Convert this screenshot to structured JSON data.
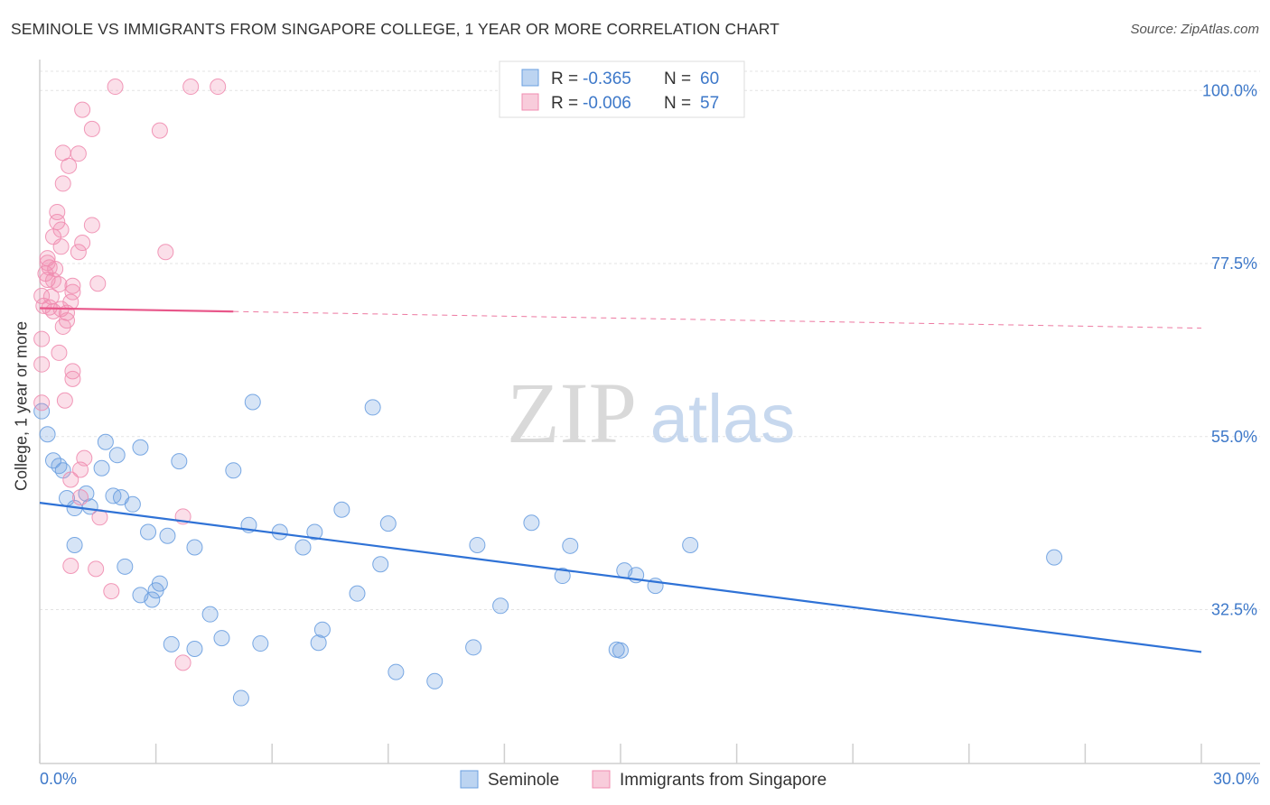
{
  "header": {
    "title": "SEMINOLE VS IMMIGRANTS FROM SINGAPORE COLLEGE, 1 YEAR OR MORE CORRELATION CHART",
    "source": "Source: ZipAtlas.com"
  },
  "watermark": {
    "zip": "ZIP",
    "atlas": "atlas"
  },
  "chart_data": {
    "type": "scatter",
    "title": "SEMINOLE VS IMMIGRANTS FROM SINGAPORE COLLEGE, 1 YEAR OR MORE CORRELATION CHART",
    "ylabel": "College, 1 year or more",
    "xlabel": "",
    "xlim": [
      0,
      30
    ],
    "ylim": [
      12.5,
      102.5
    ],
    "x_tick_labels": [
      "0.0%",
      "30.0%"
    ],
    "y_ticks": [
      32.5,
      55.0,
      77.5,
      100.0
    ],
    "y_tick_labels": [
      "32.5%",
      "55.0%",
      "77.5%",
      "100.0%"
    ],
    "grid": true,
    "legend_position": "top-center",
    "stats": [
      {
        "r_label": "R =",
        "r": "-0.365",
        "n_label": "N =",
        "n": "60"
      },
      {
        "r_label": "R =",
        "r": "-0.006",
        "n_label": "N =",
        "n": "57"
      }
    ],
    "series": [
      {
        "name": "Seminole",
        "color": "#6a9fe0",
        "trend": {
          "x": [
            0,
            30
          ],
          "y": [
            46.4,
            27.0
          ],
          "dashed_from": null
        },
        "points": [
          [
            0.05,
            58.3
          ],
          [
            0.2,
            55.3
          ],
          [
            0.35,
            51.9
          ],
          [
            0.5,
            51.2
          ],
          [
            0.6,
            50.6
          ],
          [
            0.7,
            47.0
          ],
          [
            0.9,
            45.7
          ],
          [
            1.2,
            47.6
          ],
          [
            1.3,
            45.9
          ],
          [
            1.6,
            50.9
          ],
          [
            1.7,
            54.3
          ],
          [
            1.9,
            47.3
          ],
          [
            2.0,
            52.6
          ],
          [
            2.1,
            47.1
          ],
          [
            2.4,
            46.2
          ],
          [
            2.6,
            53.6
          ],
          [
            2.8,
            42.6
          ],
          [
            0.9,
            40.9
          ],
          [
            2.2,
            38.1
          ],
          [
            2.6,
            34.4
          ],
          [
            2.9,
            33.8
          ],
          [
            3.0,
            35.0
          ],
          [
            3.1,
            35.9
          ],
          [
            3.3,
            42.1
          ],
          [
            3.6,
            51.8
          ],
          [
            3.4,
            28.0
          ],
          [
            4.0,
            40.6
          ],
          [
            4.0,
            27.4
          ],
          [
            4.4,
            31.9
          ],
          [
            4.7,
            28.8
          ],
          [
            5.0,
            50.6
          ],
          [
            5.2,
            21.0
          ],
          [
            5.4,
            43.5
          ],
          [
            5.5,
            59.5
          ],
          [
            5.7,
            28.1
          ],
          [
            6.2,
            42.6
          ],
          [
            6.8,
            40.6
          ],
          [
            7.1,
            42.6
          ],
          [
            7.2,
            28.2
          ],
          [
            7.3,
            29.9
          ],
          [
            7.8,
            45.5
          ],
          [
            8.2,
            34.6
          ],
          [
            8.6,
            58.8
          ],
          [
            8.8,
            38.4
          ],
          [
            9.0,
            43.7
          ],
          [
            9.2,
            24.4
          ],
          [
            10.2,
            23.2
          ],
          [
            11.2,
            27.6
          ],
          [
            11.3,
            40.9
          ],
          [
            11.9,
            33.0
          ],
          [
            12.7,
            43.8
          ],
          [
            13.5,
            36.9
          ],
          [
            13.7,
            40.8
          ],
          [
            14.9,
            27.3
          ],
          [
            15.1,
            37.6
          ],
          [
            15.4,
            37.0
          ],
          [
            15.9,
            35.6
          ],
          [
            16.8,
            40.9
          ],
          [
            26.2,
            39.3
          ],
          [
            15.0,
            27.2
          ]
        ]
      },
      {
        "name": "Immigrants from Singapore",
        "color": "#f08db0",
        "trend": {
          "x": [
            0,
            30
          ],
          "y": [
            71.7,
            69.1
          ],
          "dashed_from": 5.0
        },
        "points": [
          [
            1.95,
            100.5
          ],
          [
            3.9,
            100.5
          ],
          [
            4.6,
            100.5
          ],
          [
            1.1,
            97.5
          ],
          [
            1.35,
            95.0
          ],
          [
            3.1,
            94.8
          ],
          [
            0.6,
            91.9
          ],
          [
            1.0,
            91.8
          ],
          [
            0.75,
            90.2
          ],
          [
            0.6,
            87.9
          ],
          [
            0.45,
            84.2
          ],
          [
            0.45,
            82.9
          ],
          [
            1.35,
            82.5
          ],
          [
            0.55,
            81.9
          ],
          [
            0.35,
            81.0
          ],
          [
            1.1,
            80.2
          ],
          [
            0.55,
            79.7
          ],
          [
            1.0,
            79.0
          ],
          [
            3.25,
            79.0
          ],
          [
            0.2,
            78.2
          ],
          [
            0.2,
            77.6
          ],
          [
            0.25,
            77.0
          ],
          [
            0.4,
            76.8
          ],
          [
            0.15,
            76.2
          ],
          [
            0.2,
            75.4
          ],
          [
            0.35,
            75.3
          ],
          [
            0.5,
            74.8
          ],
          [
            1.5,
            74.9
          ],
          [
            0.85,
            74.6
          ],
          [
            0.85,
            73.8
          ],
          [
            0.05,
            73.3
          ],
          [
            0.3,
            73.2
          ],
          [
            0.8,
            72.5
          ],
          [
            0.1,
            72.0
          ],
          [
            0.25,
            71.8
          ],
          [
            0.35,
            71.3
          ],
          [
            0.55,
            71.6
          ],
          [
            0.7,
            71.1
          ],
          [
            0.7,
            70.1
          ],
          [
            0.6,
            69.3
          ],
          [
            0.05,
            67.7
          ],
          [
            0.5,
            65.9
          ],
          [
            0.05,
            64.4
          ],
          [
            0.85,
            63.5
          ],
          [
            0.85,
            62.5
          ],
          [
            0.65,
            59.7
          ],
          [
            0.05,
            59.4
          ],
          [
            1.15,
            52.2
          ],
          [
            1.05,
            50.7
          ],
          [
            0.8,
            49.4
          ],
          [
            1.05,
            47.1
          ],
          [
            3.7,
            44.6
          ],
          [
            1.55,
            44.5
          ],
          [
            0.8,
            38.2
          ],
          [
            1.45,
            37.8
          ],
          [
            1.85,
            34.9
          ],
          [
            3.7,
            25.6
          ]
        ]
      }
    ]
  },
  "legend": {
    "items": [
      "Seminole",
      "Immigrants from Singapore"
    ]
  }
}
